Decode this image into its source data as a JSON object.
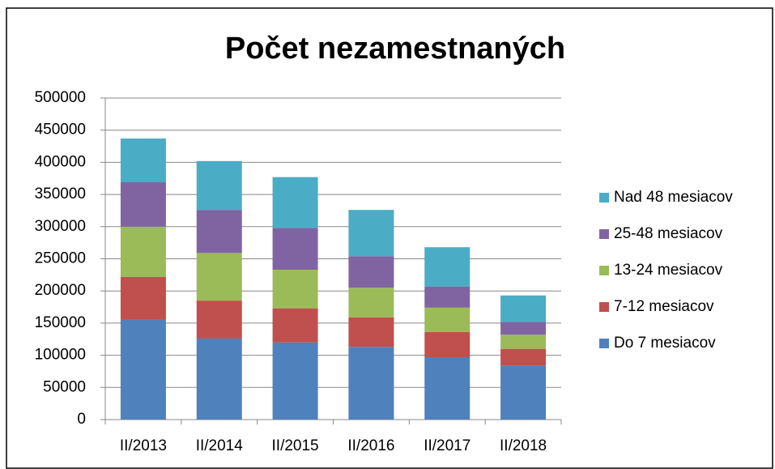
{
  "chart_data": {
    "type": "stacked_bar",
    "title": "Počet nezamestnaných",
    "categories": [
      "II/2013",
      "II/2014",
      "II/2015",
      "II/2016",
      "II/2017",
      "II/2018"
    ],
    "series": [
      {
        "name": "Do 7 mesiacov",
        "color": "#4f81bd",
        "values": [
          155000,
          126000,
          120000,
          113000,
          97000,
          84000
        ]
      },
      {
        "name": "7-12 mesiacov",
        "color": "#c0504d",
        "values": [
          67000,
          59000,
          53000,
          46000,
          39000,
          26000
        ]
      },
      {
        "name": "13-24 mesiacov",
        "color": "#9bbb59",
        "values": [
          78000,
          74000,
          60000,
          46000,
          38000,
          22000
        ]
      },
      {
        "name": "25-48 mesiacov",
        "color": "#8064a2",
        "values": [
          69000,
          67000,
          65000,
          49000,
          33000,
          20000
        ]
      },
      {
        "name": "Nad 48 mesiacov",
        "color": "#4bacc6",
        "values": [
          68000,
          76000,
          79000,
          72000,
          61000,
          41000
        ]
      }
    ],
    "ylim": [
      0,
      500000
    ],
    "yticks": [
      0,
      50000,
      100000,
      150000,
      200000,
      250000,
      300000,
      350000,
      400000,
      450000,
      500000
    ],
    "grid": true,
    "legend": "right"
  }
}
